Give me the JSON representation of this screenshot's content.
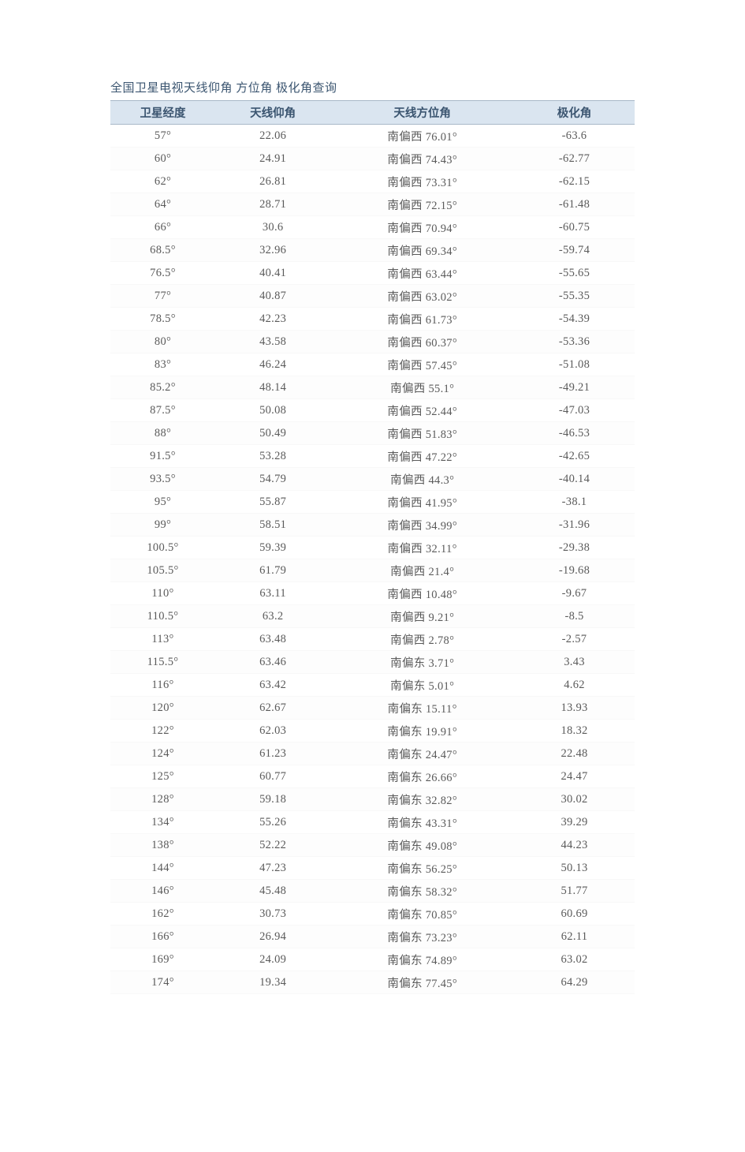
{
  "title": "全国卫星电视天线仰角 方位角 极化角查询",
  "table": {
    "columns": [
      "卫星经度",
      "天线仰角",
      "天线方位角",
      "极化角"
    ],
    "column_widths": [
      "20%",
      "22%",
      "35%",
      "23%"
    ],
    "header_bg_color": "#dae5f0",
    "header_text_color": "#3b5570",
    "header_border_color": "#a8b8c8",
    "body_text_color": "#5a5a5a",
    "background_color": "#ffffff",
    "font_family": "SimSun",
    "font_size": 14.5,
    "rows": [
      {
        "lng": "57°",
        "elev": "22.06",
        "azim": "南偏西 76.01°",
        "pol": "-63.6"
      },
      {
        "lng": "60°",
        "elev": "24.91",
        "azim": "南偏西 74.43°",
        "pol": "-62.77"
      },
      {
        "lng": "62°",
        "elev": "26.81",
        "azim": "南偏西 73.31°",
        "pol": "-62.15"
      },
      {
        "lng": "64°",
        "elev": "28.71",
        "azim": "南偏西 72.15°",
        "pol": "-61.48"
      },
      {
        "lng": "66°",
        "elev": "30.6",
        "azim": "南偏西 70.94°",
        "pol": "-60.75"
      },
      {
        "lng": "68.5°",
        "elev": "32.96",
        "azim": "南偏西 69.34°",
        "pol": "-59.74"
      },
      {
        "lng": "76.5°",
        "elev": "40.41",
        "azim": "南偏西 63.44°",
        "pol": "-55.65"
      },
      {
        "lng": "77°",
        "elev": "40.87",
        "azim": "南偏西 63.02°",
        "pol": "-55.35"
      },
      {
        "lng": "78.5°",
        "elev": "42.23",
        "azim": "南偏西 61.73°",
        "pol": "-54.39"
      },
      {
        "lng": "80°",
        "elev": "43.58",
        "azim": "南偏西 60.37°",
        "pol": "-53.36"
      },
      {
        "lng": "83°",
        "elev": "46.24",
        "azim": "南偏西 57.45°",
        "pol": "-51.08"
      },
      {
        "lng": "85.2°",
        "elev": "48.14",
        "azim": "南偏西 55.1°",
        "pol": "-49.21"
      },
      {
        "lng": "87.5°",
        "elev": "50.08",
        "azim": "南偏西 52.44°",
        "pol": "-47.03"
      },
      {
        "lng": "88°",
        "elev": "50.49",
        "azim": "南偏西 51.83°",
        "pol": "-46.53"
      },
      {
        "lng": "91.5°",
        "elev": "53.28",
        "azim": "南偏西 47.22°",
        "pol": "-42.65"
      },
      {
        "lng": "93.5°",
        "elev": "54.79",
        "azim": "南偏西 44.3°",
        "pol": "-40.14"
      },
      {
        "lng": "95°",
        "elev": "55.87",
        "azim": "南偏西 41.95°",
        "pol": "-38.1"
      },
      {
        "lng": "99°",
        "elev": "58.51",
        "azim": "南偏西 34.99°",
        "pol": "-31.96"
      },
      {
        "lng": "100.5°",
        "elev": "59.39",
        "azim": "南偏西 32.11°",
        "pol": "-29.38"
      },
      {
        "lng": "105.5°",
        "elev": "61.79",
        "azim": "南偏西 21.4°",
        "pol": "-19.68"
      },
      {
        "lng": "110°",
        "elev": "63.11",
        "azim": "南偏西 10.48°",
        "pol": "-9.67"
      },
      {
        "lng": "110.5°",
        "elev": "63.2",
        "azim": "南偏西 9.21°",
        "pol": "-8.5"
      },
      {
        "lng": "113°",
        "elev": "63.48",
        "azim": "南偏西 2.78°",
        "pol": "-2.57"
      },
      {
        "lng": "115.5°",
        "elev": "63.46",
        "azim": "南偏东 3.71°",
        "pol": "3.43"
      },
      {
        "lng": "116°",
        "elev": "63.42",
        "azim": "南偏东 5.01°",
        "pol": "4.62"
      },
      {
        "lng": "120°",
        "elev": "62.67",
        "azim": "南偏东 15.11°",
        "pol": "13.93"
      },
      {
        "lng": "122°",
        "elev": "62.03",
        "azim": "南偏东 19.91°",
        "pol": "18.32"
      },
      {
        "lng": "124°",
        "elev": "61.23",
        "azim": "南偏东 24.47°",
        "pol": "22.48"
      },
      {
        "lng": "125°",
        "elev": "60.77",
        "azim": "南偏东 26.66°",
        "pol": "24.47"
      },
      {
        "lng": "128°",
        "elev": "59.18",
        "azim": "南偏东 32.82°",
        "pol": "30.02"
      },
      {
        "lng": "134°",
        "elev": "55.26",
        "azim": "南偏东 43.31°",
        "pol": "39.29"
      },
      {
        "lng": "138°",
        "elev": "52.22",
        "azim": "南偏东 49.08°",
        "pol": "44.23"
      },
      {
        "lng": "144°",
        "elev": "47.23",
        "azim": "南偏东 56.25°",
        "pol": "50.13"
      },
      {
        "lng": "146°",
        "elev": "45.48",
        "azim": "南偏东 58.32°",
        "pol": "51.77"
      },
      {
        "lng": "162°",
        "elev": "30.73",
        "azim": "南偏东 70.85°",
        "pol": "60.69"
      },
      {
        "lng": "166°",
        "elev": "26.94",
        "azim": "南偏东 73.23°",
        "pol": "62.11"
      },
      {
        "lng": "169°",
        "elev": "24.09",
        "azim": "南偏东 74.89°",
        "pol": "63.02"
      },
      {
        "lng": "174°",
        "elev": "19.34",
        "azim": "南偏东 77.45°",
        "pol": "64.29"
      }
    ]
  }
}
